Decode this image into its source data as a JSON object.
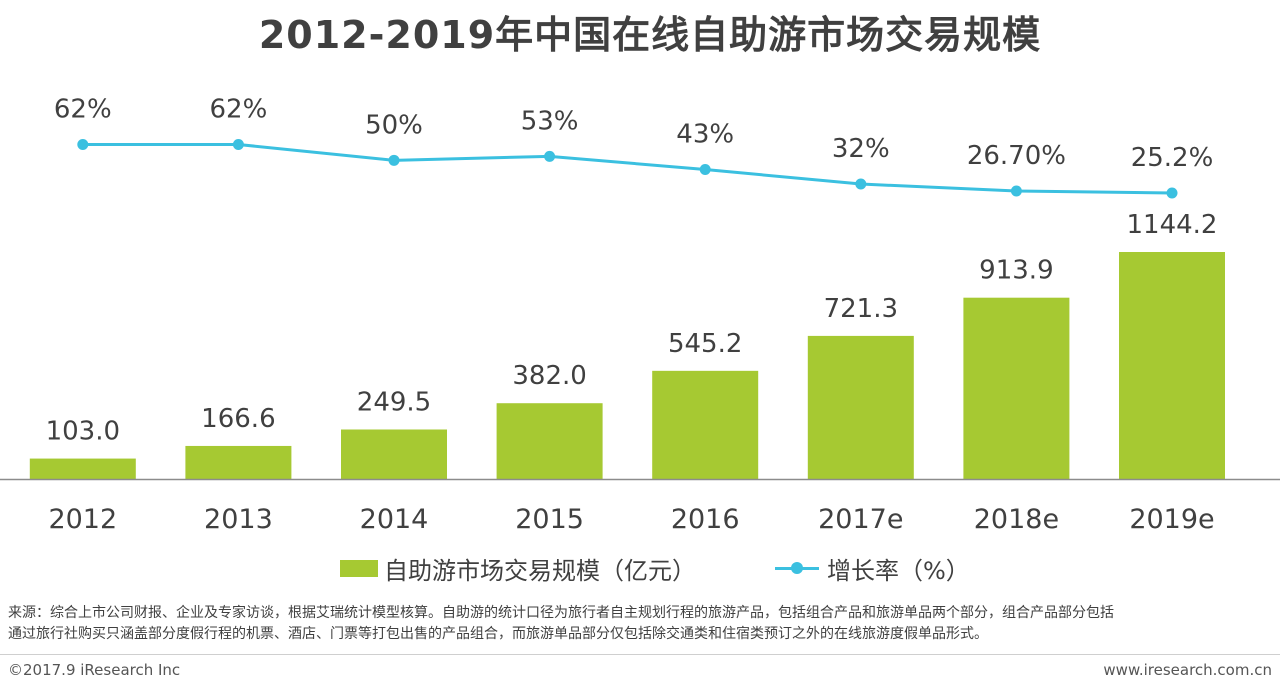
{
  "chart_data": {
    "type": "bar",
    "title": "2012-2019年中国在线自助游市场交易规模",
    "categories": [
      "2012",
      "2013",
      "2014",
      "2015",
      "2016",
      "2017e",
      "2018e",
      "2019e"
    ],
    "series": [
      {
        "name": "自助游市场交易规模（亿元）",
        "type": "bar",
        "values": [
          103.0,
          166.6,
          249.5,
          382.0,
          545.2,
          721.3,
          913.9,
          1144.2
        ],
        "labels": [
          "103.0",
          "166.6",
          "249.5",
          "382.0",
          "545.2",
          "721.3",
          "913.9",
          "1144.2"
        ],
        "color": "#a6c932"
      },
      {
        "name": "增长率（%）",
        "type": "line",
        "values": [
          62,
          62,
          50,
          53,
          43,
          32,
          26.7,
          25.2
        ],
        "labels": [
          "62%",
          "62%",
          "50%",
          "53%",
          "43%",
          "32%",
          "26.70%",
          "25.2%"
        ],
        "color": "#3bc0e0"
      }
    ],
    "xlabel": "",
    "ylabel": "",
    "legend_position": "bottom",
    "grid": false
  },
  "legend": {
    "bar_label": "自助游市场交易规模（亿元）",
    "line_label": "增长率（%）"
  },
  "source": {
    "line1": "来源：综合上市公司财报、企业及专家访谈，根据艾瑞统计模型核算。自助游的统计口径为旅行者自主规划行程的旅游产品，包括组合产品和旅游单品两个部分，组合产品部分包括",
    "line2": "通过旅行社购买只涵盖部分度假行程的机票、酒店、门票等打包出售的产品组合，而旅游单品部分仅包括除交通类和住宿类预订之外的在线旅游度假单品形式。"
  },
  "footer": {
    "copyright": "©2017.9 iResearch Inc",
    "website": "www.iresearch.com.cn"
  }
}
